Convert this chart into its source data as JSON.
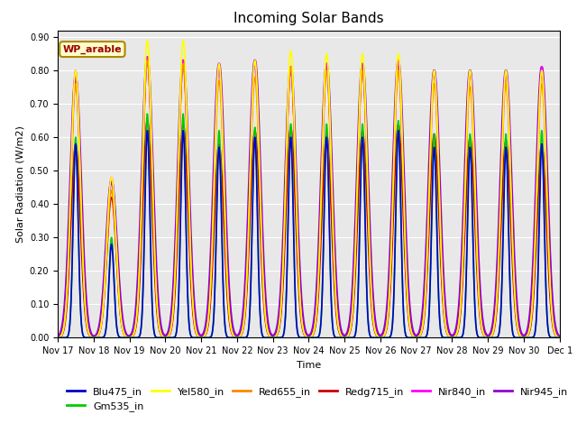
{
  "title": "Incoming Solar Bands",
  "ylabel": "Solar Radiation (W/m2)",
  "xlabel": "Time",
  "annotation": "WP_arable",
  "ylim": [
    0,
    0.92
  ],
  "yticks": [
    0.0,
    0.1,
    0.2,
    0.3,
    0.4,
    0.5,
    0.6,
    0.7,
    0.8,
    0.9
  ],
  "series": {
    "Blu475_in": {
      "color": "#0000cc",
      "lw": 1.2
    },
    "Gm535_in": {
      "color": "#00cc00",
      "lw": 1.2
    },
    "Yel580_in": {
      "color": "#ffff00",
      "lw": 1.2
    },
    "Red655_in": {
      "color": "#ff8800",
      "lw": 1.2
    },
    "Redg715_in": {
      "color": "#cc0000",
      "lw": 1.2
    },
    "Nir840_in": {
      "color": "#ff00ff",
      "lw": 1.2
    },
    "Nir945_in": {
      "color": "#9900cc",
      "lw": 1.8
    }
  },
  "legend_order": [
    "Blu475_in",
    "Gm535_in",
    "Yel580_in",
    "Red655_in",
    "Redg715_in",
    "Nir840_in",
    "Nir945_in"
  ],
  "background_color": "#e8e8e8",
  "annotation_bg": "#ffffcc",
  "annotation_border": "#aa8800",
  "annotation_text_color": "#990000",
  "day_peaks": {
    "0": [
      0.8,
      0.76,
      0.58,
      0.8,
      0.6,
      0.58,
      0.78
    ],
    "1": [
      0.48,
      0.44,
      0.42,
      0.48,
      0.3,
      0.28,
      0.47
    ],
    "2": [
      0.89,
      0.83,
      0.65,
      0.84,
      0.67,
      0.62,
      0.84
    ],
    "3": [
      0.89,
      0.82,
      0.64,
      0.83,
      0.67,
      0.62,
      0.83
    ],
    "4": [
      0.82,
      0.77,
      0.58,
      0.82,
      0.62,
      0.57,
      0.82
    ],
    "5": [
      0.83,
      0.78,
      0.62,
      0.83,
      0.63,
      0.6,
      0.83
    ],
    "6": [
      0.86,
      0.81,
      0.63,
      0.81,
      0.64,
      0.6,
      0.81
    ],
    "7": [
      0.85,
      0.8,
      0.61,
      0.82,
      0.64,
      0.6,
      0.82
    ],
    "8": [
      0.85,
      0.8,
      0.62,
      0.81,
      0.64,
      0.6,
      0.82
    ],
    "9": [
      0.85,
      0.8,
      0.64,
      0.83,
      0.65,
      0.62,
      0.83
    ],
    "10": [
      0.8,
      0.76,
      0.61,
      0.8,
      0.61,
      0.57,
      0.8
    ],
    "11": [
      0.8,
      0.75,
      0.6,
      0.8,
      0.61,
      0.57,
      0.8
    ],
    "12": [
      0.8,
      0.76,
      0.59,
      0.8,
      0.61,
      0.57,
      0.8
    ],
    "13": [
      0.8,
      0.76,
      0.58,
      0.81,
      0.62,
      0.58,
      0.81
    ]
  }
}
